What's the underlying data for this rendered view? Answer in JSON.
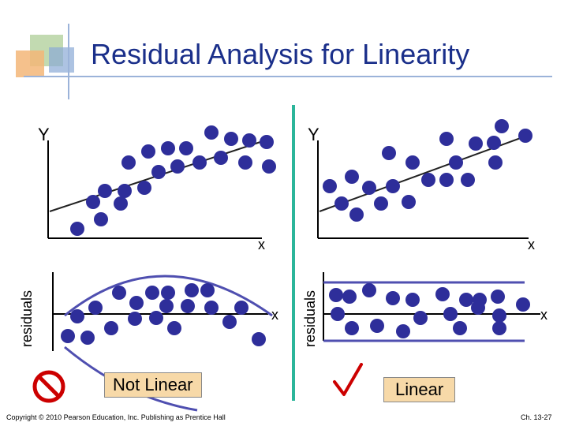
{
  "title": "Residual Analysis for Linearity",
  "labels": {
    "y_left": "Y",
    "y_right": "Y",
    "x_left": "x",
    "x_right": "x",
    "x_res_left": "x",
    "x_res_right": "x",
    "residuals_left": "residuals",
    "residuals_right": "residuals"
  },
  "verdicts": {
    "left": "Not Linear",
    "right": "Linear"
  },
  "icons": {
    "left": "prohibited-icon",
    "right": "checkmark-icon"
  },
  "footer": {
    "copyright": "Copyright © 2010 Pearson Education, Inc. Publishing as Prentice Hall",
    "page": "Ch. 13-27"
  },
  "colors": {
    "title": "#1a2f8a",
    "dot": "#2e2e9a",
    "band": "#4f4fb0",
    "divider": "#2bb59a",
    "badge": "#f7d9a8",
    "prohibited": "#cc0000"
  }
}
